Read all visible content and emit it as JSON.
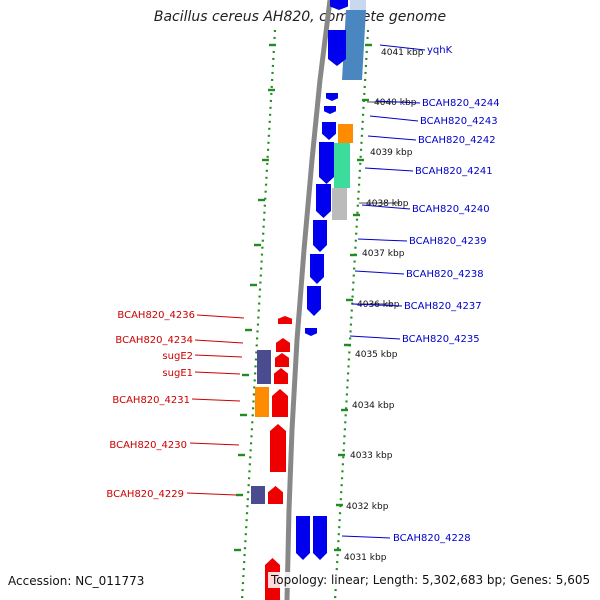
{
  "header": {
    "title": "Bacillus cereus AH820, complete genome"
  },
  "footer": {
    "accession_text": "Accession: NC_011773",
    "info_text": "Topology: linear; Length: 5,302,683 bp; Genes: 5,605"
  },
  "colors": {
    "forward_gene": "#0000ee",
    "reverse_gene": "#ee0000",
    "forward_label": "#0000cc",
    "reverse_label": "#cc0000",
    "backbone": "#888888",
    "track_dots": "#228b22",
    "feature_orange": "#ff8c00",
    "feature_green": "#3cdc9c",
    "feature_grey": "#bbbbbb",
    "feature_steel": "#4a86c0",
    "feature_lightsteel": "#c8d8ee",
    "feature_purple": "#4b4b8f"
  },
  "kbp_ticks": [
    "4041 kbp",
    "4040 kbp",
    "4039 kbp",
    "4038 kbp",
    "4037 kbp",
    "4036 kbp",
    "4035 kbp",
    "4034 kbp",
    "4033 kbp",
    "4032 kbp",
    "4031 kbp"
  ],
  "forward_labels": [
    "yqhK",
    "BCAH820_4244",
    "BCAH820_4243",
    "BCAH820_4242",
    "BCAH820_4241",
    "BCAH820_4240",
    "BCAH820_4239",
    "BCAH820_4238",
    "BCAH820_4237",
    "BCAH820_4235",
    "BCAH820_4228"
  ],
  "reverse_labels": [
    "BCAH820_4236",
    "BCAH820_4234",
    "sugE2",
    "sugE1",
    "BCAH820_4231",
    "BCAH820_4230",
    "BCAH820_4229"
  ]
}
